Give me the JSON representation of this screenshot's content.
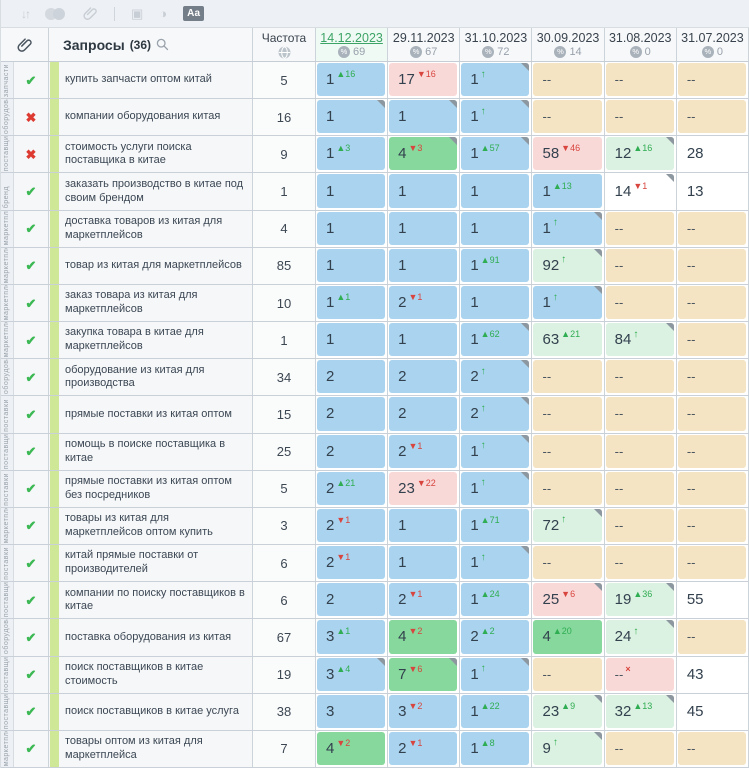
{
  "toolbar": {
    "icons": [
      {
        "name": "sort-icon",
        "glyph": "↓↑"
      },
      {
        "name": "compare-toggle-icon",
        "glyph": ""
      },
      {
        "name": "link-icon",
        "glyph": ""
      },
      {
        "name": "divider",
        "glyph": ""
      },
      {
        "name": "save-icon",
        "glyph": "▣"
      },
      {
        "name": "contrast-icon",
        "glyph": "◑"
      },
      {
        "name": "case-icon",
        "glyph": "Аа"
      }
    ]
  },
  "table": {
    "queries_label": "Запросы",
    "queries_count": "(36)",
    "frequency_label": "Частота",
    "date_columns": [
      {
        "date": "14.12.2023",
        "metric": "69",
        "active": true
      },
      {
        "date": "29.11.2023",
        "metric": "67",
        "active": false
      },
      {
        "date": "31.10.2023",
        "metric": "72",
        "active": false
      },
      {
        "date": "30.09.2023",
        "metric": "14",
        "active": false
      },
      {
        "date": "31.08.2023",
        "metric": "0",
        "active": false
      },
      {
        "date": "31.07.2023",
        "metric": "0",
        "active": false
      }
    ],
    "rows": [
      {
        "status": "check",
        "rail": "запчасти",
        "query": "купить запчасти оптом китай",
        "frequency": "5",
        "cells": [
          {
            "v": "1",
            "d": "16",
            "t": "up",
            "bg": "blue"
          },
          {
            "v": "17",
            "d": "16",
            "t": "down",
            "bg": "pink"
          },
          {
            "v": "1",
            "t": "new",
            "bg": "blue",
            "fl": true
          },
          {
            "v": "--",
            "bg": "tan"
          },
          {
            "v": "--",
            "bg": "tan"
          },
          {
            "v": "--",
            "bg": "tan"
          }
        ]
      },
      {
        "status": "cross",
        "rail": "оборудование",
        "query": "компании оборудования китая",
        "frequency": "16",
        "cells": [
          {
            "v": "1",
            "bg": "blue",
            "fl": true
          },
          {
            "v": "1",
            "bg": "blue",
            "fl": true
          },
          {
            "v": "1",
            "t": "new",
            "bg": "blue",
            "fl": true
          },
          {
            "v": "--",
            "bg": "tan"
          },
          {
            "v": "--",
            "bg": "tan"
          },
          {
            "v": "--",
            "bg": "tan"
          }
        ]
      },
      {
        "status": "cross",
        "rail": "поставщик",
        "query": "стоимость услуги поиска поставщика в китае",
        "frequency": "9",
        "cells": [
          {
            "v": "1",
            "d": "3",
            "t": "up",
            "bg": "blue"
          },
          {
            "v": "4",
            "d": "3",
            "t": "down",
            "bg": "green",
            "fl": true
          },
          {
            "v": "1",
            "d": "57",
            "t": "up",
            "bg": "blue",
            "fl": true
          },
          {
            "v": "58",
            "d": "46",
            "t": "down",
            "bg": "pink"
          },
          {
            "v": "12",
            "d": "16",
            "t": "up",
            "bg": "pale",
            "fl": true
          },
          {
            "v": "28",
            "bg": "white"
          }
        ]
      },
      {
        "status": "check",
        "rail": "бренд",
        "query": "заказать производство в китае под своим брендом",
        "frequency": "1",
        "cells": [
          {
            "v": "1",
            "bg": "blue"
          },
          {
            "v": "1",
            "bg": "blue"
          },
          {
            "v": "1",
            "bg": "blue"
          },
          {
            "v": "1",
            "d": "13",
            "t": "up",
            "bg": "blue"
          },
          {
            "v": "14",
            "d": "1",
            "t": "down",
            "bg": "white",
            "fl": true
          },
          {
            "v": "13",
            "bg": "white"
          }
        ]
      },
      {
        "status": "check",
        "rail": "маркетплейс",
        "query": "доставка товаров из китая для маркетплейсов",
        "frequency": "4",
        "cells": [
          {
            "v": "1",
            "bg": "blue"
          },
          {
            "v": "1",
            "bg": "blue"
          },
          {
            "v": "1",
            "bg": "blue"
          },
          {
            "v": "1",
            "t": "new",
            "bg": "blue",
            "fl": true
          },
          {
            "v": "--",
            "bg": "tan"
          },
          {
            "v": "--",
            "bg": "tan"
          }
        ]
      },
      {
        "status": "check",
        "rail": "маркетплейс",
        "query": "товар из китая для маркетплейсов",
        "frequency": "85",
        "cells": [
          {
            "v": "1",
            "bg": "blue"
          },
          {
            "v": "1",
            "bg": "blue"
          },
          {
            "v": "1",
            "d": "91",
            "t": "up",
            "bg": "blue"
          },
          {
            "v": "92",
            "t": "new",
            "bg": "pale",
            "fl": true
          },
          {
            "v": "--",
            "bg": "tan"
          },
          {
            "v": "--",
            "bg": "tan"
          }
        ]
      },
      {
        "status": "check",
        "rail": "маркетплейс",
        "query": "заказ товара из китая для маркетплейсов",
        "frequency": "10",
        "cells": [
          {
            "v": "1",
            "d": "1",
            "t": "up",
            "bg": "blue"
          },
          {
            "v": "2",
            "d": "1",
            "t": "down",
            "bg": "blue"
          },
          {
            "v": "1",
            "bg": "blue"
          },
          {
            "v": "1",
            "t": "new",
            "bg": "blue",
            "fl": true
          },
          {
            "v": "--",
            "bg": "tan"
          },
          {
            "v": "--",
            "bg": "tan"
          }
        ]
      },
      {
        "status": "check",
        "rail": "маркетплейс",
        "query": "закупка товара в китае для маркетплейсов",
        "frequency": "1",
        "cells": [
          {
            "v": "1",
            "bg": "blue"
          },
          {
            "v": "1",
            "bg": "blue"
          },
          {
            "v": "1",
            "d": "62",
            "t": "up",
            "bg": "blue",
            "fl": true
          },
          {
            "v": "63",
            "d": "21",
            "t": "up",
            "bg": "pale"
          },
          {
            "v": "84",
            "t": "new",
            "bg": "pale",
            "fl": true
          },
          {
            "v": "--",
            "bg": "tan"
          }
        ]
      },
      {
        "status": "check",
        "rail": "оборудование",
        "query": "оборудование из китая для производства",
        "frequency": "34",
        "cells": [
          {
            "v": "2",
            "bg": "blue"
          },
          {
            "v": "2",
            "bg": "blue"
          },
          {
            "v": "2",
            "t": "new",
            "bg": "blue",
            "fl": true
          },
          {
            "v": "--",
            "bg": "tan"
          },
          {
            "v": "--",
            "bg": "tan"
          },
          {
            "v": "--",
            "bg": "tan"
          }
        ]
      },
      {
        "status": "check",
        "rail": "поставки",
        "query": "прямые поставки из китая оптом",
        "frequency": "15",
        "cells": [
          {
            "v": "2",
            "bg": "blue"
          },
          {
            "v": "2",
            "bg": "blue"
          },
          {
            "v": "2",
            "t": "new",
            "bg": "blue",
            "fl": true
          },
          {
            "v": "--",
            "bg": "tan"
          },
          {
            "v": "--",
            "bg": "tan"
          },
          {
            "v": "--",
            "bg": "tan"
          }
        ]
      },
      {
        "status": "check",
        "rail": "поставщик",
        "query": "помощь в поиске поставщика в китае",
        "frequency": "25",
        "cells": [
          {
            "v": "2",
            "bg": "blue"
          },
          {
            "v": "2",
            "d": "1",
            "t": "down",
            "bg": "blue"
          },
          {
            "v": "1",
            "t": "new",
            "bg": "blue",
            "fl": true
          },
          {
            "v": "--",
            "bg": "tan"
          },
          {
            "v": "--",
            "bg": "tan"
          },
          {
            "v": "--",
            "bg": "tan"
          }
        ]
      },
      {
        "status": "check",
        "rail": "поставки",
        "query": "прямые поставки из китая оптом без посредников",
        "frequency": "5",
        "cells": [
          {
            "v": "2",
            "d": "21",
            "t": "up",
            "bg": "blue"
          },
          {
            "v": "23",
            "d": "22",
            "t": "down",
            "bg": "pink"
          },
          {
            "v": "1",
            "t": "new",
            "bg": "blue",
            "fl": true
          },
          {
            "v": "--",
            "bg": "tan"
          },
          {
            "v": "--",
            "bg": "tan"
          },
          {
            "v": "--",
            "bg": "tan"
          }
        ]
      },
      {
        "status": "check",
        "rail": "маркетплейс",
        "query": "товары из китая для маркетплейсов оптом купить",
        "frequency": "3",
        "cells": [
          {
            "v": "2",
            "d": "1",
            "t": "down",
            "bg": "blue"
          },
          {
            "v": "1",
            "bg": "blue"
          },
          {
            "v": "1",
            "d": "71",
            "t": "up",
            "bg": "blue"
          },
          {
            "v": "72",
            "t": "new",
            "bg": "pale",
            "fl": true
          },
          {
            "v": "--",
            "bg": "tan"
          },
          {
            "v": "--",
            "bg": "tan"
          }
        ]
      },
      {
        "status": "check",
        "rail": "поставки",
        "query": "китай прямые поставки от производителей",
        "frequency": "6",
        "cells": [
          {
            "v": "2",
            "d": "1",
            "t": "down",
            "bg": "blue"
          },
          {
            "v": "1",
            "bg": "blue"
          },
          {
            "v": "1",
            "t": "new",
            "bg": "blue",
            "fl": true
          },
          {
            "v": "--",
            "bg": "tan"
          },
          {
            "v": "--",
            "bg": "tan"
          },
          {
            "v": "--",
            "bg": "tan"
          }
        ]
      },
      {
        "status": "check",
        "rail": "поставщик",
        "query": "компании по поиску поставщиков в китае",
        "frequency": "6",
        "cells": [
          {
            "v": "2",
            "bg": "blue"
          },
          {
            "v": "2",
            "d": "1",
            "t": "down",
            "bg": "blue"
          },
          {
            "v": "1",
            "d": "24",
            "t": "up",
            "bg": "blue"
          },
          {
            "v": "25",
            "d": "6",
            "t": "down",
            "bg": "pink",
            "fl": true
          },
          {
            "v": "19",
            "d": "36",
            "t": "up",
            "bg": "pale",
            "fl": true
          },
          {
            "v": "55",
            "bg": "white"
          }
        ]
      },
      {
        "status": "check",
        "rail": "оборудование",
        "query": "поставка оборудования из китая",
        "frequency": "67",
        "cells": [
          {
            "v": "3",
            "d": "1",
            "t": "up",
            "bg": "blue"
          },
          {
            "v": "4",
            "d": "2",
            "t": "down",
            "bg": "green"
          },
          {
            "v": "2",
            "d": "2",
            "t": "up",
            "bg": "blue"
          },
          {
            "v": "4",
            "d": "20",
            "t": "up",
            "bg": "green"
          },
          {
            "v": "24",
            "t": "new",
            "bg": "pale",
            "fl": true
          },
          {
            "v": "--",
            "bg": "tan"
          }
        ]
      },
      {
        "status": "check",
        "rail": "поставщик",
        "query": "поиск поставщиков в китае стоимость",
        "frequency": "19",
        "cells": [
          {
            "v": "3",
            "d": "4",
            "t": "up",
            "bg": "blue",
            "fl": true
          },
          {
            "v": "7",
            "d": "6",
            "t": "down",
            "bg": "green",
            "fl": true
          },
          {
            "v": "1",
            "t": "new",
            "bg": "blue",
            "fl": true
          },
          {
            "v": "--",
            "bg": "tan"
          },
          {
            "v": "--",
            "t": "x",
            "bg": "pink"
          },
          {
            "v": "43",
            "bg": "white"
          }
        ]
      },
      {
        "status": "check",
        "rail": "поставщик",
        "query": "поиск поставщиков в китае услуга",
        "frequency": "38",
        "cells": [
          {
            "v": "3",
            "bg": "blue"
          },
          {
            "v": "3",
            "d": "2",
            "t": "down",
            "bg": "blue"
          },
          {
            "v": "1",
            "d": "22",
            "t": "up",
            "bg": "blue"
          },
          {
            "v": "23",
            "d": "9",
            "t": "up",
            "bg": "pale",
            "fl": true
          },
          {
            "v": "32",
            "d": "13",
            "t": "up",
            "bg": "pale",
            "fl": true
          },
          {
            "v": "45",
            "bg": "white"
          }
        ]
      },
      {
        "status": "check",
        "rail": "маркетплейс",
        "query": "товары оптом из китая для маркетплейса",
        "frequency": "7",
        "cells": [
          {
            "v": "4",
            "d": "2",
            "t": "down",
            "bg": "green"
          },
          {
            "v": "2",
            "d": "1",
            "t": "down",
            "bg": "blue"
          },
          {
            "v": "1",
            "d": "8",
            "t": "up",
            "bg": "blue"
          },
          {
            "v": "9",
            "t": "new",
            "bg": "pale",
            "fl": true
          },
          {
            "v": "--",
            "bg": "tan"
          },
          {
            "v": "--",
            "bg": "tan"
          }
        ]
      }
    ]
  },
  "colors": {
    "cell_bg": {
      "blue": "#a9d3ee",
      "green": "#86d89c",
      "pale": "#dbf1e1",
      "pink": "#f9d9d8",
      "tan": "#f4e4c3",
      "white": "#ffffff"
    },
    "check_green": "#3cb854",
    "cross_red": "#dd3b32",
    "delta_up": "#2fad52",
    "delta_down": "#d8453e",
    "active_date_green": "#3da467",
    "group_band": "#cfe897"
  }
}
